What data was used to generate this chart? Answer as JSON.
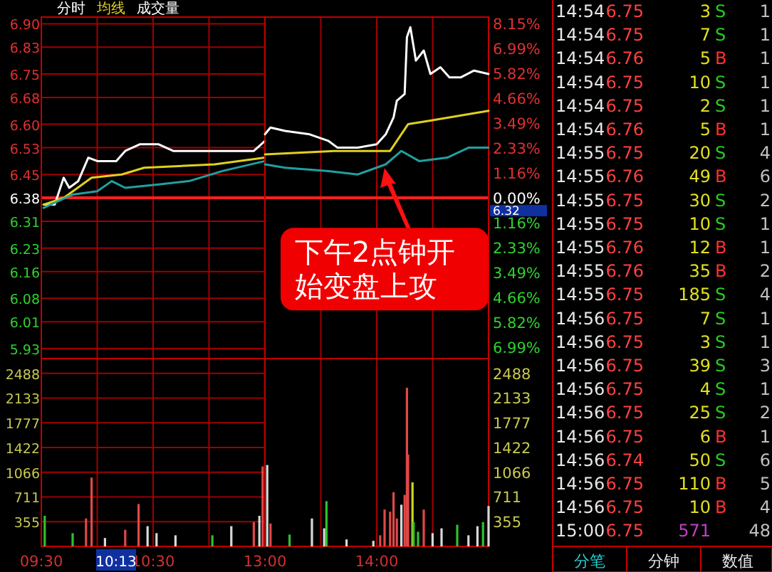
{
  "chart_data": [
    {
      "type": "line",
      "legend": "top left",
      "grid": true,
      "tick_labels": "y",
      "xlim": [
        9.5,
        11.5
      ],
      "xticks": [
        {
          "value": 9.5,
          "label": null
        },
        {
          "value": 10,
          "label": null
        },
        {
          "value": 10.5,
          "label": null
        },
        {
          "value": 11,
          "label": null
        },
        {
          "value": 11.5,
          "label": null
        }
      ],
      "ylim": [
        5.9,
        6.92
      ],
      "yticks": [
        5.93,
        6.01,
        6.08,
        6.16,
        6.23,
        6.31,
        6.38,
        6.45,
        6.53,
        {
          "value": 6.6,
          "label": "6.60"
        },
        6.68,
        6.75,
        6.83,
        {
          "value": 6.9,
          "label": "6.90"
        }
      ],
      "ref_lines": [
        {
          "axis": "y",
          "value": 6.38,
          "color": "#ff2020"
        }
      ],
      "series": [
        {
          "name": "分时",
          "color": "#ffffff",
          "x": [
            9.52,
            9.62,
            9.7,
            9.75,
            9.83,
            9.92,
            10,
            10.17,
            10.25,
            10.38,
            10.55,
            10.68,
            10.85,
            11.05,
            11.27,
            11.4,
            11.5
          ],
          "values": [
            6.36,
            6.36,
            6.44,
            6.41,
            6.43,
            6.5,
            6.49,
            6.49,
            6.52,
            6.54,
            6.54,
            6.52,
            6.52,
            6.52,
            6.52,
            6.52,
            6.55
          ]
        },
        {
          "name": "均线",
          "color": "#e0d020",
          "x": [
            9.52,
            9.7,
            9.95,
            10.22,
            10.42,
            11.05,
            11.5
          ],
          "values": [
            6.36,
            6.38,
            6.44,
            6.45,
            6.47,
            6.48,
            6.5
          ]
        },
        {
          "color": "#20a0a0",
          "x": [
            9.52,
            9.78,
            10,
            10.13,
            10.25,
            10.55,
            10.82,
            11.12,
            11.5
          ],
          "values": [
            6.35,
            6.39,
            6.4,
            6.43,
            6.41,
            6.42,
            6.43,
            6.46,
            6.49
          ]
        }
      ]
    },
    {
      "type": "line",
      "grid": true,
      "tick_labels": "y",
      "xlim": [
        13,
        15
      ],
      "xticks": [
        {
          "value": 13,
          "label": null
        },
        {
          "value": 13.5,
          "label": null
        },
        {
          "value": 14,
          "label": null
        },
        {
          "value": 14.5,
          "label": null
        },
        {
          "value": 15,
          "label": null
        }
      ],
      "ylim": [
        5.9,
        6.92
      ],
      "y2lim": [
        -7.52,
        8.46
      ],
      "y2ticks": [
        {
          "value": -6.99,
          "label": "6.99%"
        },
        {
          "value": -5.82,
          "label": "5.82%"
        },
        {
          "value": -4.66,
          "label": "4.66%"
        },
        {
          "value": -3.49,
          "label": "3.49%"
        },
        {
          "value": -2.33,
          "label": "2.33%"
        },
        {
          "value": -1.16,
          "label": "1.16%"
        },
        {
          "value": 0,
          "label": "0.00%"
        },
        {
          "value": 1.16,
          "label": "1.16%"
        },
        {
          "value": 2.33,
          "label": "2.33%"
        },
        {
          "value": 3.49,
          "label": "3.49%"
        },
        {
          "value": 4.66,
          "label": "4.66%"
        },
        {
          "value": 5.82,
          "label": "5.82%"
        },
        {
          "value": 6.99,
          "label": "6.99%"
        },
        {
          "value": 8.15,
          "label": "8.15%"
        }
      ],
      "ref_lines": [
        {
          "axis": "y",
          "value": 6.38,
          "color": "#ff2020"
        }
      ],
      "series": [
        {
          "color": "#ffffff",
          "x": [
            13,
            13.05,
            13.18,
            13.4,
            13.57,
            13.65,
            13.83,
            14,
            14.08,
            14.15,
            14.18,
            14.25,
            14.27,
            14.3,
            14.35,
            14.42,
            14.48,
            14.57,
            14.65,
            14.75,
            14.87,
            15
          ],
          "values": [
            6.57,
            6.59,
            6.58,
            6.57,
            6.55,
            6.53,
            6.53,
            6.54,
            6.57,
            6.62,
            6.67,
            6.69,
            6.86,
            6.89,
            6.79,
            6.82,
            6.75,
            6.77,
            6.74,
            6.74,
            6.76,
            6.75
          ]
        },
        {
          "color": "#e0d020",
          "x": [
            13,
            13.62,
            14.12,
            14.28,
            14.47,
            15
          ],
          "values": [
            6.51,
            6.52,
            6.52,
            6.6,
            6.61,
            6.64
          ]
        },
        {
          "color": "#20a0a0",
          "x": [
            13,
            13.18,
            13.57,
            13.83,
            14.08,
            14.22,
            14.38,
            14.63,
            14.82,
            15
          ],
          "values": [
            6.48,
            6.47,
            6.46,
            6.45,
            6.48,
            6.52,
            6.49,
            6.5,
            6.53,
            6.53
          ]
        }
      ],
      "annotations": [
        {
          "text": "下午2点钟开始变盘上攻",
          "x": 14.07,
          "y": 6.49
        },
        "6.32"
      ]
    },
    {
      "type": "bar",
      "grid": true,
      "legend": "top left",
      "xlim": [
        9.5,
        11.5
      ],
      "xticks": [
        {
          "value": 9.5,
          "label": "09:30"
        },
        {
          "value": 10,
          "label": null
        },
        {
          "value": 10.5,
          "label": "10:30"
        },
        {
          "value": 11,
          "label": null
        },
        {
          "value": 11.5,
          "label": null
        }
      ],
      "ylim": [
        0,
        2700
      ],
      "yticks": [
        355,
        711,
        1066,
        1422,
        1777,
        2133,
        2488
      ],
      "series": [
        {
          "name": "成交量",
          "x": [
            9.53,
            9.78,
            9.9,
            9.95,
            10.07,
            10.25,
            10.37,
            10.45,
            10.53,
            10.7,
            11.03,
            11.2,
            11.4,
            11.45,
            11.48
          ],
          "values": [
            440,
            190,
            400,
            990,
            120,
            240,
            610,
            290,
            190,
            160,
            160,
            290,
            350,
            440,
            1150
          ],
          "colors": [
            "#30c030",
            "#30c030",
            "#e04848",
            "#e04848",
            "#d8d8d8",
            "#e04848",
            "#e04848",
            "#d8d8d8",
            "#d8d8d8",
            "#d8d8d8",
            "#30c030",
            "#d8d8d8",
            "#e04848",
            "#d8d8d8",
            "#e04848"
          ]
        }
      ],
      "annotations": [
        "10:13"
      ]
    },
    {
      "type": "bar",
      "grid": true,
      "xlim": [
        13,
        15
      ],
      "xticks": [
        {
          "value": 13,
          "label": "13:00"
        },
        {
          "value": 13.5,
          "label": null
        },
        {
          "value": 14,
          "label": "14:00"
        },
        {
          "value": 14.5,
          "label": null
        },
        {
          "value": 15,
          "label": null
        }
      ],
      "ylim": [
        0,
        2700
      ],
      "y2lim": [
        0,
        2700
      ],
      "y2ticks": [
        355,
        711,
        1066,
        1422,
        1777,
        2133,
        2488
      ],
      "series": [
        {
          "x": [
            13.02,
            13.05,
            13.22,
            13.42,
            13.53,
            13.55,
            13.73,
            13.97,
            14.03,
            14.07,
            14.12,
            14.15,
            14.18,
            14.22,
            14.25,
            14.27,
            14.28,
            14.32,
            14.33,
            14.37,
            14.42,
            14.5,
            14.58,
            14.72,
            14.82,
            14.9,
            14.95,
            15
          ],
          "values": [
            1170,
            330,
            170,
            400,
            260,
            650,
            100,
            80,
            160,
            530,
            500,
            780,
            400,
            600,
            740,
            2280,
            1320,
            920,
            350,
            210,
            530,
            190,
            260,
            310,
            160,
            290,
            350,
            580
          ],
          "colors": [
            "#d8d8d8",
            "#e04848",
            "#30c030",
            "#d8d8d8",
            "#d8d8d8",
            "#30c030",
            "#d8d8d8",
            "#d8d8d8",
            "#e04848",
            "#e04848",
            "#e04848",
            "#e04848",
            "#e04848",
            "#d8d8d8",
            "#e04848",
            "#e04848",
            "#e04848",
            "#c8d820",
            "#30c030",
            "#30c030",
            "#e04848",
            "#d8d8d8",
            "#d8d8d8",
            "#30c030",
            "#d8d8d8",
            "#d8d8d8",
            "#30c030",
            "#d8d8d8"
          ]
        }
      ]
    },
    {
      "type": "other",
      "annotations": [
        "14:54",
        "6.75",
        "3",
        "S",
        "1",
        "14:54",
        "6.75",
        "7",
        "S",
        "1",
        "14:54",
        "6.76",
        "5",
        "B",
        "1",
        "14:54",
        "6.75",
        "10",
        "S",
        "1",
        "14:54",
        "6.75",
        "2",
        "S",
        "1",
        "14:54",
        "6.76",
        "5",
        "B",
        "1",
        "14:55",
        "6.75",
        "20",
        "S",
        "4",
        "14:55",
        "6.76",
        "49",
        "B",
        "6",
        "14:55",
        "6.75",
        "30",
        "S",
        "2",
        "14:55",
        "6.75",
        "10",
        "S",
        "1",
        "14:55",
        "6.76",
        "12",
        "B",
        "1",
        "14:55",
        "6.76",
        "35",
        "B",
        "2",
        "14:55",
        "6.75",
        "185",
        "S",
        "4",
        "14:56",
        "6.75",
        "7",
        "S",
        "1",
        "14:56",
        "6.75",
        "3",
        "S",
        "1",
        "14:56",
        "6.75",
        "39",
        "S",
        "3",
        "14:56",
        "6.75",
        "4",
        "S",
        "1",
        "14:56",
        "6.75",
        "25",
        "S",
        "2",
        "14:56",
        "6.75",
        "6",
        "B",
        "1",
        "14:56",
        "6.74",
        "50",
        "S",
        "6",
        "14:56",
        "6.75",
        "110",
        "B",
        "5",
        "14:56",
        "6.75",
        "10",
        "B",
        "4",
        "15:00",
        "6.75",
        "571",
        null,
        "48",
        "分笔",
        "分钟",
        "数值"
      ],
      "colors": [
        "#e8e8e8",
        "#ff4040",
        "#e0e020",
        "#20d020",
        "#c0c0c0",
        "#e8e8e8",
        "#ff4040",
        "#e0e020",
        "#20d020",
        "#c0c0c0",
        "#e8e8e8",
        "#ff4040",
        "#e0e020",
        "#ff3030",
        "#c0c0c0",
        "#e8e8e8",
        "#ff4040",
        "#e0e020",
        "#20d020",
        "#c0c0c0",
        "#e8e8e8",
        "#ff4040",
        "#e0e020",
        "#20d020",
        "#c0c0c0",
        "#e8e8e8",
        "#ff4040",
        "#e0e020",
        "#ff3030",
        "#c0c0c0",
        "#e8e8e8",
        "#ff4040",
        "#e0e020",
        "#20d020",
        "#c0c0c0",
        "#e8e8e8",
        "#ff4040",
        "#e0e020",
        "#ff3030",
        "#c0c0c0",
        "#e8e8e8",
        "#ff4040",
        "#e0e020",
        "#20d020",
        "#c0c0c0",
        "#e8e8e8",
        "#ff4040",
        "#e0e020",
        "#20d020",
        "#c0c0c0",
        "#e8e8e8",
        "#ff4040",
        "#e0e020",
        "#ff3030",
        "#c0c0c0",
        "#e8e8e8",
        "#ff4040",
        "#e0e020",
        "#ff3030",
        "#c0c0c0",
        "#e8e8e8",
        "#ff4040",
        "#e0e020",
        "#20d020",
        "#c0c0c0",
        "#e8e8e8",
        "#ff4040",
        "#e0e020",
        "#20d020",
        "#c0c0c0",
        "#e8e8e8",
        "#ff4040",
        "#e0e020",
        "#20d020",
        "#c0c0c0",
        "#e8e8e8",
        "#ff4040",
        "#e0e020",
        "#20d020",
        "#c0c0c0",
        "#e8e8e8",
        "#ff4040",
        "#e0e020",
        "#20d020",
        "#c0c0c0",
        "#e8e8e8",
        "#ff4040",
        "#e0e020",
        "#20d020",
        "#c0c0c0",
        "#e8e8e8",
        "#ff4040",
        "#e0e020",
        "#ff3030",
        "#c0c0c0",
        "#e8e8e8",
        "#ff4040",
        "#e0e020",
        "#20d020",
        "#c0c0c0",
        "#e8e8e8",
        "#ff4040",
        "#e0e020",
        "#ff3030",
        "#c0c0c0",
        "#e8e8e8",
        "#ff4040",
        "#e0e020",
        "#ff3030",
        "#c0c0c0",
        "#e8e8e8",
        "#ff4040",
        "#c040c0",
        null,
        "#c0c0c0",
        "#20d0d0",
        "#e8e8e8",
        "#e8e8e8"
      ]
    }
  ]
}
